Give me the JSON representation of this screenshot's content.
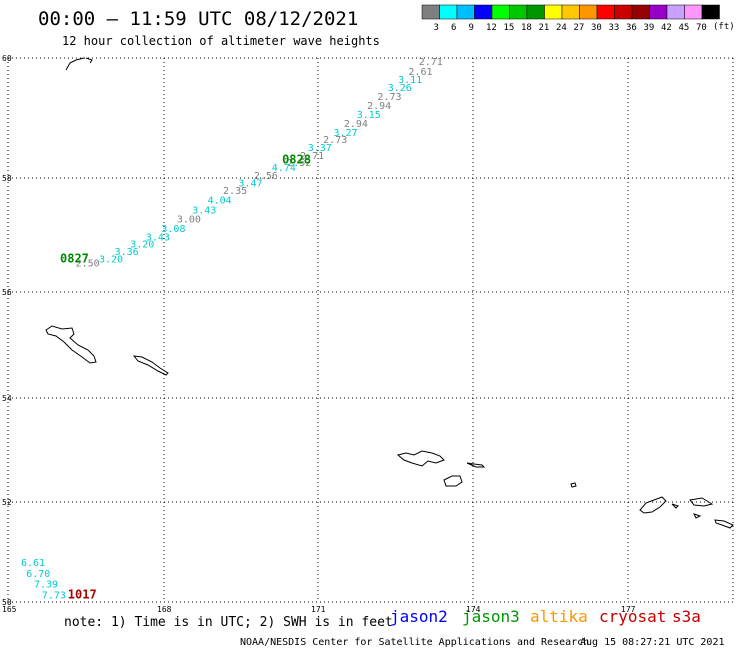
{
  "title": "00:00 – 11:59 UTC 08/12/2021",
  "subtitle": "12 hour collection of altimeter wave heights",
  "colorbar": {
    "unit": "(ft)",
    "colors": [
      "#7f7f7f",
      "#00ffff",
      "#00bfff",
      "#0000ff",
      "#00ff00",
      "#00c800",
      "#009600",
      "#ffff00",
      "#ffc800",
      "#ff9600",
      "#ff0000",
      "#c80000",
      "#960000",
      "#9600c8",
      "#c8a0ff",
      "#ff96ff",
      "#000000"
    ],
    "labels": [
      "3",
      "6",
      "9",
      "12",
      "15",
      "18",
      "21",
      "24",
      "27",
      "30",
      "33",
      "36",
      "39",
      "42",
      "45",
      "70"
    ]
  },
  "axes": {
    "lat_labels": [
      "60",
      "58",
      "56",
      "54",
      "52",
      "50"
    ],
    "lon_labels": [
      "165",
      "168",
      "171",
      "174",
      "177"
    ]
  },
  "satellite_colors": {
    "jason3": "#00ff00",
    "jason3_label": "#008800",
    "grey": "#808080",
    "cyan": "#00cccc",
    "cryosat": "#aa0000"
  },
  "track_labels": [
    {
      "text": "0828",
      "lon": 170.3,
      "lat": 58.24,
      "sat": "jason3"
    },
    {
      "text": "0827",
      "lon": 166.0,
      "lat": 56.52,
      "sat": "jason3"
    },
    {
      "text": "1017",
      "lon": 166.15,
      "lat": 50.07,
      "sat": "cryosat"
    }
  ],
  "swh_points": [
    {
      "value": "2.71",
      "lon": 172.95,
      "lat": 59.88,
      "c": "grey"
    },
    {
      "value": "2.61",
      "lon": 172.75,
      "lat": 59.72,
      "c": "grey"
    },
    {
      "value": "3.11",
      "lon": 172.55,
      "lat": 59.58,
      "c": "cyan"
    },
    {
      "value": "3.26",
      "lon": 172.35,
      "lat": 59.45,
      "c": "cyan"
    },
    {
      "value": "2.73",
      "lon": 172.15,
      "lat": 59.3,
      "c": "grey"
    },
    {
      "value": "2.94",
      "lon": 171.95,
      "lat": 59.15,
      "c": "grey"
    },
    {
      "value": "3.15",
      "lon": 171.75,
      "lat": 59.0,
      "c": "cyan"
    },
    {
      "value": "2.94",
      "lon": 171.5,
      "lat": 58.85,
      "c": "grey"
    },
    {
      "value": "3.27",
      "lon": 171.3,
      "lat": 58.7,
      "c": "cyan"
    },
    {
      "value": "2.73",
      "lon": 171.1,
      "lat": 58.58,
      "c": "grey"
    },
    {
      "value": "3.37",
      "lon": 170.8,
      "lat": 58.45,
      "c": "cyan"
    },
    {
      "value": "2.71",
      "lon": 170.65,
      "lat": 58.32,
      "c": "grey"
    },
    {
      "value": "2.52",
      "lon": 170.4,
      "lat": 58.2,
      "c": "grey"
    },
    {
      "value": "4.74",
      "lon": 170.1,
      "lat": 58.12,
      "c": "cyan"
    },
    {
      "value": "2.56",
      "lon": 169.75,
      "lat": 57.98,
      "c": "grey"
    },
    {
      "value": "3.47",
      "lon": 169.45,
      "lat": 57.85,
      "c": "cyan"
    },
    {
      "value": "2.35",
      "lon": 169.15,
      "lat": 57.72,
      "c": "grey"
    },
    {
      "value": "4.04",
      "lon": 168.85,
      "lat": 57.55,
      "c": "cyan"
    },
    {
      "value": "3.43",
      "lon": 168.55,
      "lat": 57.38,
      "c": "cyan"
    },
    {
      "value": "3.00",
      "lon": 168.25,
      "lat": 57.22,
      "c": "grey"
    },
    {
      "value": "3.08",
      "lon": 167.95,
      "lat": 57.05,
      "c": "cyan"
    },
    {
      "value": "3.43",
      "lon": 167.65,
      "lat": 56.9,
      "c": "cyan"
    },
    {
      "value": "3.20",
      "lon": 167.35,
      "lat": 56.78,
      "c": "cyan"
    },
    {
      "value": "3.36",
      "lon": 167.05,
      "lat": 56.65,
      "c": "cyan"
    },
    {
      "value": "3.20",
      "lon": 166.75,
      "lat": 56.52,
      "c": "cyan"
    },
    {
      "value": "2.50",
      "lon": 166.3,
      "lat": 56.45,
      "c": "grey"
    },
    {
      "value": "6.61",
      "lon": 165.25,
      "lat": 50.72,
      "c": "cyan"
    },
    {
      "value": "6.70",
      "lon": 165.35,
      "lat": 50.5,
      "c": "cyan"
    },
    {
      "value": "7.39",
      "lon": 165.5,
      "lat": 50.29,
      "c": "cyan"
    },
    {
      "value": "7.73",
      "lon": 165.65,
      "lat": 50.07,
      "c": "cyan"
    }
  ],
  "legend": {
    "note": "note: 1) Time is in UTC; 2) SWH is in feet",
    "sats": [
      {
        "name": "jason2",
        "color": "#0000ff"
      },
      {
        "name": "jason3",
        "color": "#009600"
      },
      {
        "name": "altika",
        "color": "#ff9600"
      },
      {
        "name": "cryosat",
        "color": "#c80000"
      },
      {
        "name": "s3a",
        "color": "#c80000"
      }
    ]
  },
  "credit": "NOAA/NESDIS Center for Satellite Applications and Research",
  "timestamp": "Aug 15 08:27:21 UTC 2021"
}
